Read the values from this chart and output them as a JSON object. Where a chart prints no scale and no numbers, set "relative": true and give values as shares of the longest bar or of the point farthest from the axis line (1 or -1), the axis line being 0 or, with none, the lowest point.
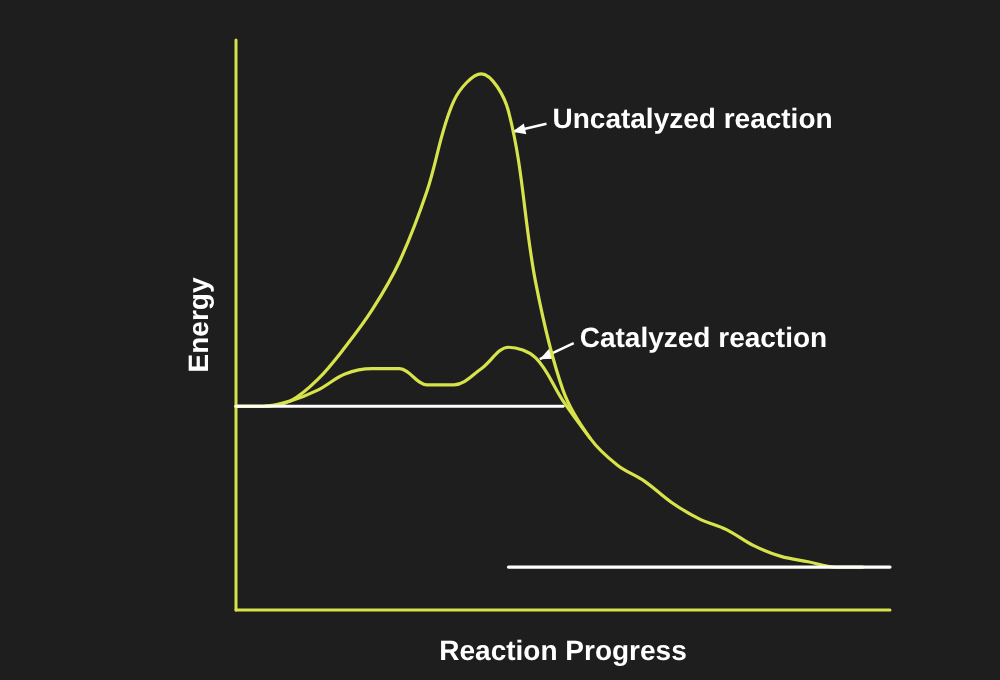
{
  "chart_data": {
    "type": "line",
    "relative": true,
    "xlabel": "Reaction Progress",
    "ylabel": "Energy",
    "legend": false,
    "grid": false,
    "marker": "none",
    "categories": [
      null,
      null,
      null,
      null,
      null,
      null,
      null,
      null,
      null,
      null,
      null,
      null,
      null,
      null,
      null,
      null,
      null,
      null,
      null,
      null,
      null,
      null,
      null,
      null,
      null
    ],
    "series": [
      {
        "name": "Uncatalyzed reaction",
        "color": "#d7e34a",
        "values": [
          0.38,
          0.38,
          0.39,
          0.43,
          0.49,
          0.56,
          0.65,
          0.78,
          0.95,
          1.0,
          0.93,
          0.61,
          0.41,
          0.32,
          0.27,
          0.24,
          0.2,
          0.17,
          0.15,
          0.12,
          0.1,
          0.09,
          0.08,
          0.08,
          null
        ]
      },
      {
        "name": "Catalyzed reaction",
        "color": "#d7e34a",
        "values": [
          0.38,
          0.38,
          0.39,
          0.41,
          0.44,
          0.45,
          0.45,
          0.42,
          0.42,
          0.45,
          0.49,
          0.47,
          0.39,
          0.32,
          null,
          null,
          null,
          null,
          null,
          null,
          null,
          null,
          null,
          null,
          null
        ]
      },
      {
        "color": "#ffffff",
        "values": [
          0.38,
          0.38,
          0.38,
          0.38,
          0.38,
          0.38,
          0.38,
          0.38,
          0.38,
          0.38,
          0.38,
          0.38,
          0.38,
          null,
          null,
          null,
          null,
          null,
          null,
          null,
          null,
          null,
          null,
          null,
          null
        ]
      },
      {
        "color": "#ffffff",
        "values": [
          null,
          null,
          null,
          null,
          null,
          null,
          null,
          null,
          null,
          null,
          0.08,
          0.08,
          0.08,
          0.08,
          0.08,
          0.08,
          0.08,
          0.08,
          0.08,
          0.08,
          0.08,
          0.08,
          0.08,
          0.08,
          0.08
        ]
      }
    ]
  }
}
